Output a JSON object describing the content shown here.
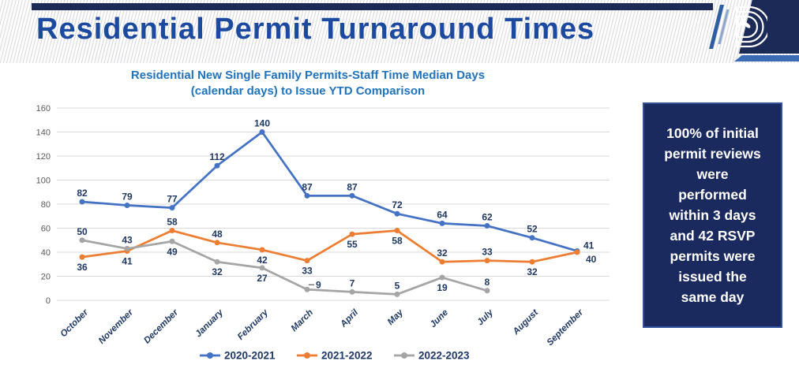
{
  "header": {
    "title": "Residential Permit Turnaround Times"
  },
  "colors": {
    "navy_bar": "#1B2A57",
    "header_title_blue": "#1B4A9E",
    "chart_title_blue": "#2173BC",
    "data_label_navy": "#1F3864",
    "axis_tick_gray": "#595959",
    "gridline_gray": "#D9D9D9",
    "callout_bg": "#1A2A5E",
    "callout_text": "#FFFFFF",
    "logo_accent_blue": "#3A6BB4"
  },
  "chart_data": {
    "type": "line",
    "title": "Residential New Single Family Permits-Staff Time Median Days (calendar days) to Issue YTD Comparison",
    "title_lines": [
      "Residential New Single Family Permits-Staff Time Median Days",
      "(calendar days) to Issue YTD Comparison"
    ],
    "categories": [
      "October",
      "November",
      "December",
      "January",
      "February",
      "March",
      "April",
      "May",
      "June",
      "July",
      "August",
      "September"
    ],
    "ylim": [
      0,
      160
    ],
    "yticks": [
      0,
      20,
      40,
      60,
      80,
      100,
      120,
      140,
      160
    ],
    "grid": true,
    "legend_position": "bottom",
    "series": [
      {
        "name": "2020-2021",
        "color": "#4472C4",
        "values": [
          82,
          79,
          77,
          112,
          140,
          87,
          87,
          72,
          64,
          62,
          52,
          41
        ],
        "label_pos": [
          "a",
          "a",
          "a",
          "a",
          "a",
          "a",
          "a",
          "a",
          "a",
          "a",
          "a",
          "ra"
        ]
      },
      {
        "name": "2021-2022",
        "color": "#ED7D31",
        "values": [
          36,
          41,
          58,
          48,
          42,
          33,
          55,
          58,
          32,
          33,
          32,
          40
        ],
        "label_pos": [
          "b",
          "b",
          "a",
          "a",
          "b",
          "b",
          "b",
          "b",
          "a",
          "a",
          "b",
          "rb"
        ]
      },
      {
        "name": "2022-2023",
        "color": "#A5A5A5",
        "values": [
          50,
          43,
          49,
          32,
          27,
          9,
          7,
          5,
          19,
          8,
          null,
          null
        ],
        "label_pos": [
          "a",
          "a",
          "b",
          "b",
          "b",
          "lr",
          "a",
          "a",
          "b",
          "a",
          "a",
          "a"
        ]
      }
    ]
  },
  "sidebar": {
    "text": "100% of initial permit reviews were performed within 3 days and 42 RSVP permits were issued the same day",
    "lines": [
      "100% of initial",
      "permit reviews",
      "were",
      "performed",
      "within 3 days",
      "and 42 RSVP",
      "permits were",
      "issued the",
      "same day"
    ]
  }
}
